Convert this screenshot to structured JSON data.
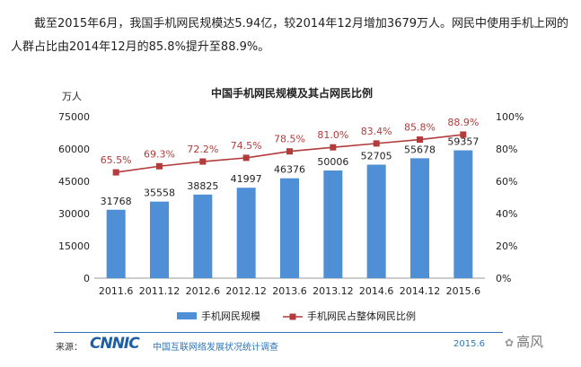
{
  "intro": {
    "text": "截至2015年6月，我国手机网民规模达5.94亿，较2014年12月增加3679万人。网民中使用手机上网的人群占比由2014年12月的85.8%提升至88.9%。"
  },
  "chart_data": {
    "type": "bar",
    "title": "中国手机网民规模及其占网民比例",
    "ylabel": "万人",
    "categories": [
      "2011.6",
      "2011.12",
      "2012.6",
      "2012.12",
      "2013.6",
      "2013.12",
      "2014.6",
      "2014.12",
      "2015.6"
    ],
    "ylim": [
      0,
      75000
    ],
    "yticks": [
      0,
      15000,
      30000,
      45000,
      60000,
      75000
    ],
    "y2lim": [
      0,
      100
    ],
    "y2ticks": [
      "0%",
      "20%",
      "40%",
      "60%",
      "80%",
      "100%"
    ],
    "series": [
      {
        "name": "手机网民规模",
        "type": "bar",
        "axis": "left",
        "color": "#4f8fd6",
        "values": [
          31768,
          35558,
          38825,
          41997,
          46376,
          50006,
          52705,
          55678,
          59357
        ],
        "labels": [
          "31768",
          "35558",
          "38825",
          "41997",
          "46376",
          "50006",
          "52705",
          "55678",
          "59357"
        ]
      },
      {
        "name": "手机网民占整体网民比例",
        "type": "line",
        "axis": "right",
        "color": "#b23b3b",
        "values": [
          65.5,
          69.3,
          72.2,
          74.5,
          78.5,
          81.0,
          83.4,
          85.8,
          88.9
        ],
        "labels": [
          "65.5%",
          "69.3%",
          "72.2%",
          "74.5%",
          "78.5%",
          "81.0%",
          "83.4%",
          "85.8%",
          "88.9%"
        ]
      }
    ],
    "legend": "bottom",
    "grid": false
  },
  "footer": {
    "source_label": "来源：",
    "source_logo": "CNNIC",
    "source_name": "中国互联网络发展状况统计调查",
    "date": "2015.6"
  },
  "watermark": {
    "text": "高风"
  }
}
